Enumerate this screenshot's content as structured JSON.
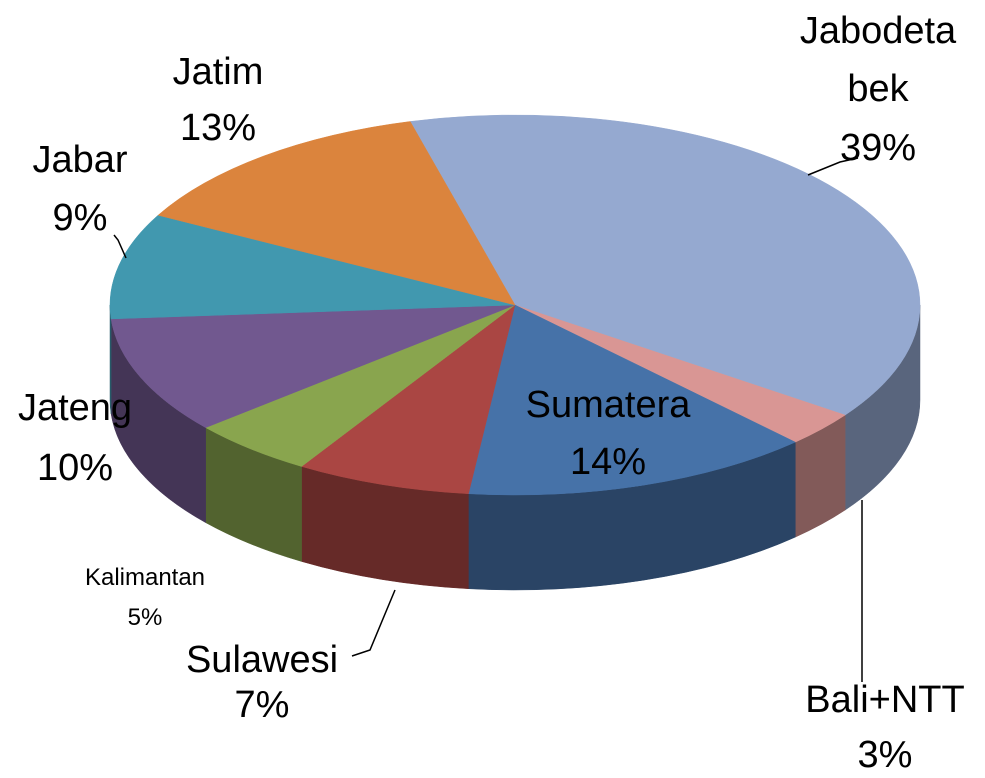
{
  "chart_data": {
    "type": "pie",
    "categories": [
      "Jabodetabek",
      "Bali+NTT",
      "Sumatera",
      "Sulawesi",
      "Kalimantan",
      "Jateng",
      "Jabar",
      "Jatim"
    ],
    "values": [
      39,
      3,
      14,
      7,
      5,
      10,
      9,
      13
    ],
    "value_labels": [
      "39%",
      "3%",
      "14%",
      "7%",
      "5%",
      "10%",
      "9%",
      "13%"
    ],
    "colors": [
      "#95a9d0",
      "#d99694",
      "#4672a8",
      "#aa4643",
      "#89a54e",
      "#71588f",
      "#4198af",
      "#db843d"
    ]
  }
}
